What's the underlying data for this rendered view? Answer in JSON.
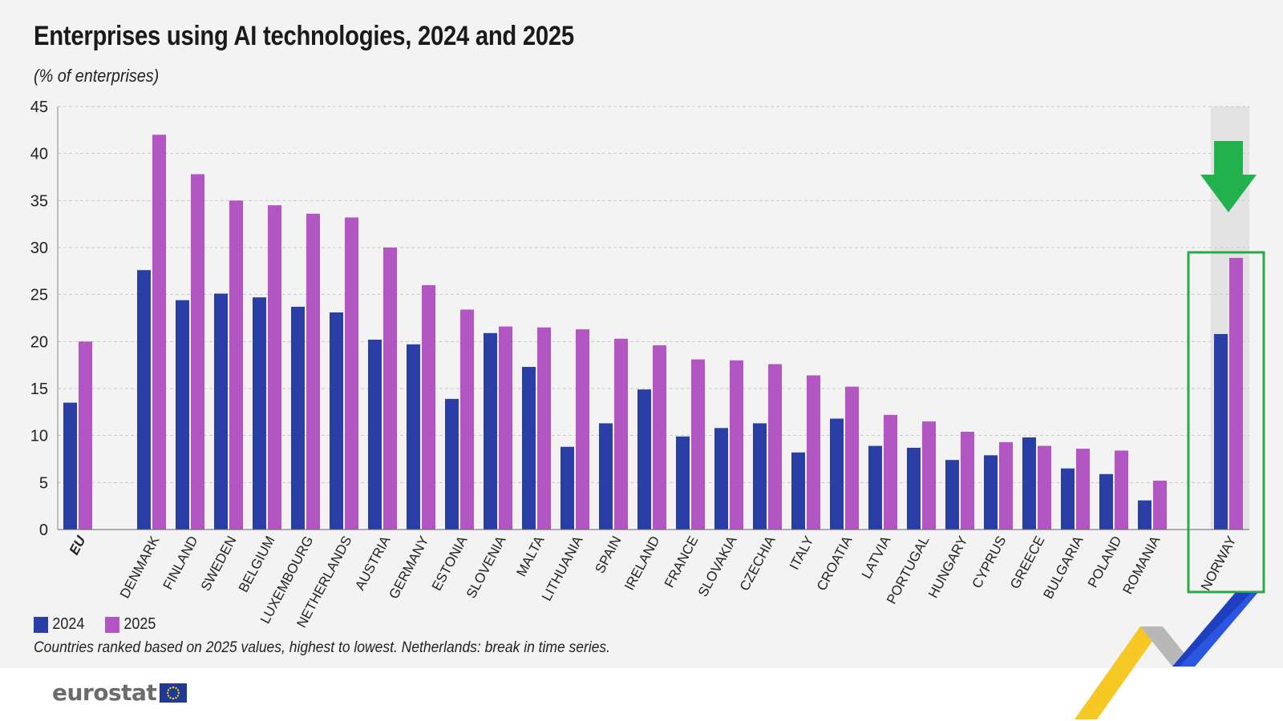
{
  "header": {
    "title": "Enterprises using AI technologies, 2024 and 2025",
    "subtitle": "(% of enterprises)"
  },
  "legend": {
    "items": [
      {
        "label": "2024",
        "color": "#2a3fa6"
      },
      {
        "label": "2025",
        "color": "#b455c4"
      }
    ]
  },
  "footnote": "Countries ranked based on 2025 values, highest to lowest. Netherlands: break in time series.",
  "logo": {
    "text": "eurostat"
  },
  "colors": {
    "series_2024": "#2a3fa6",
    "series_2025": "#b455c4",
    "highlight_box": "#2aa84a",
    "arrow": "#22b14c",
    "shade": "#e3e3e3",
    "grid": "#c8c8c8"
  },
  "chart_data": {
    "type": "bar",
    "title": "Enterprises using AI technologies, 2024 and 2025",
    "subtitle": "(% of enterprises)",
    "xlabel": "",
    "ylabel": "",
    "ylim": [
      0,
      45
    ],
    "yticks": [
      0,
      5,
      10,
      15,
      20,
      25,
      30,
      35,
      40,
      45
    ],
    "grid": true,
    "legend_position": "bottom-left",
    "categories": [
      "EU",
      "DENMARK",
      "FINLAND",
      "SWEDEN",
      "BELGIUM",
      "LUXEMBOURG",
      "NETHERLANDS",
      "AUSTRIA",
      "GERMANY",
      "ESTONIA",
      "SLOVENIA",
      "MALTA",
      "LITHUANIA",
      "SPAIN",
      "IRELAND",
      "FRANCE",
      "SLOVAKIA",
      "CZECHIA",
      "ITALY",
      "CROATIA",
      "LATVIA",
      "PORTUGAL",
      "HUNGARY",
      "CYPRUS",
      "GREECE",
      "BULGARIA",
      "POLAND",
      "ROMANIA",
      "NORWAY"
    ],
    "series": [
      {
        "name": "2024",
        "values": [
          13.5,
          27.6,
          24.4,
          25.1,
          24.7,
          23.7,
          23.1,
          20.2,
          19.7,
          13.9,
          20.9,
          17.3,
          8.8,
          11.3,
          14.9,
          9.9,
          10.8,
          11.3,
          8.2,
          11.8,
          8.9,
          8.7,
          7.4,
          7.9,
          9.8,
          6.5,
          5.9,
          3.1,
          20.8
        ]
      },
      {
        "name": "2025",
        "values": [
          20.0,
          42.0,
          37.8,
          35.0,
          34.5,
          33.6,
          33.2,
          30.0,
          26.0,
          23.4,
          21.6,
          21.5,
          21.3,
          20.3,
          19.6,
          18.1,
          18.0,
          17.6,
          16.4,
          15.2,
          12.2,
          11.5,
          10.4,
          9.3,
          8.9,
          8.6,
          8.4,
          5.2,
          28.9
        ]
      }
    ],
    "highlighted_category": "NORWAY"
  }
}
